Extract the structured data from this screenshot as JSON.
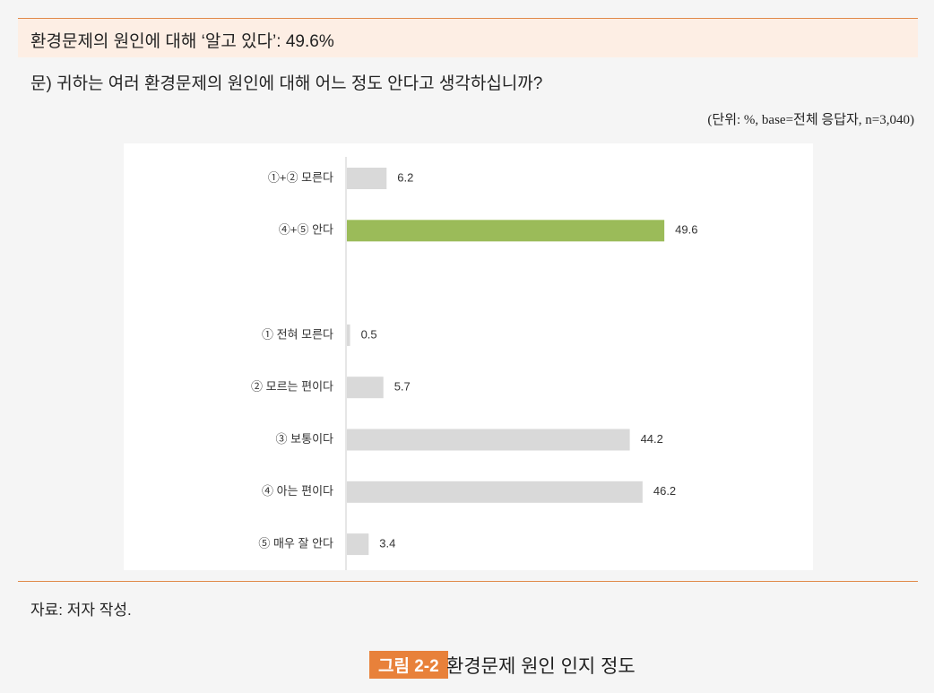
{
  "header": {
    "title": "환경문제의 원인에 대해 ‘알고 있다’: 49.6%",
    "question": "문) 귀하는 여러 환경문제의 원인에 대해 어느 정도 안다고 생각하십니까?",
    "unit_note": "(단위: %, base=전체 응답자, n=3,040)"
  },
  "chart_data": {
    "type": "bar",
    "orientation": "horizontal",
    "categories": [
      "①+② 모른다",
      "④+⑤ 안다",
      null,
      "① 전혀 모른다",
      "② 모르는 편이다",
      "③ 보통이다",
      "④ 아는 편이다",
      "⑤ 매우 잘 안다"
    ],
    "values": [
      6.2,
      49.6,
      null,
      0.5,
      5.7,
      44.2,
      46.2,
      3.4
    ],
    "colors": [
      "#d9d9d9",
      "#9bbb59",
      null,
      "#d9d9d9",
      "#d9d9d9",
      "#d9d9d9",
      "#d9d9d9",
      "#d9d9d9"
    ]
  },
  "source": "자료: 저자 작성.",
  "figure": {
    "number": "그림 2-2",
    "caption": "환경문제 원인 인지 정도"
  }
}
